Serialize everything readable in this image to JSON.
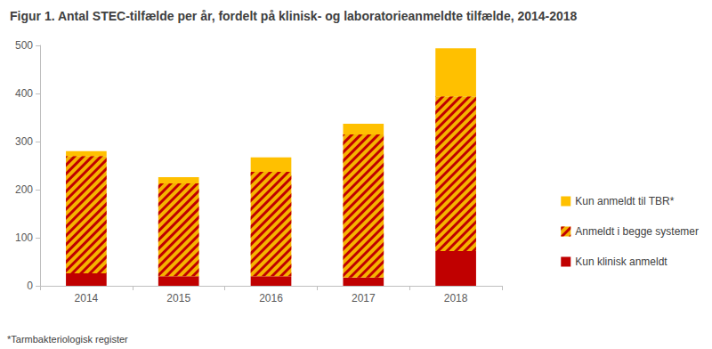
{
  "chart_data": {
    "type": "bar",
    "title": "Figur 1. Antal STEC-tilfælde per år, fordelt på klinisk- og laboratorieanmeldte tilfælde, 2014-2018",
    "categories": [
      "2014",
      "2015",
      "2016",
      "2017",
      "2018"
    ],
    "series": [
      {
        "name": "Kun klinisk anmeldt",
        "color": "#c00000",
        "values": [
          26,
          20,
          20,
          17,
          72
        ]
      },
      {
        "name": "Anmeldt i begge systemer",
        "color": "#f5b300",
        "values": [
          244,
          193,
          217,
          298,
          322
        ]
      },
      {
        "name": "Kun anmeldt til TBR*",
        "color": "#ffc000",
        "values": [
          10,
          13,
          30,
          22,
          100
        ]
      }
    ],
    "stacked": true,
    "ylim": [
      0,
      500
    ],
    "yticks": [
      0,
      100,
      200,
      300,
      400,
      500
    ],
    "grid": false,
    "legend": "right",
    "annotations": [
      "*Tarmbakteriologisk register"
    ]
  }
}
